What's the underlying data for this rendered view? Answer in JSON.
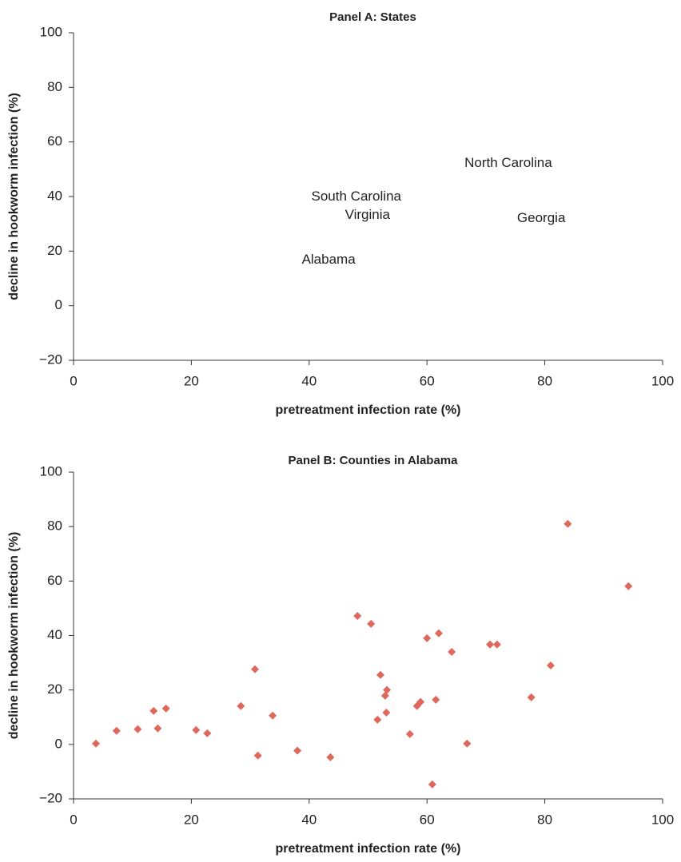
{
  "chart_data": [
    {
      "type": "scatter",
      "title": "Panel A: States",
      "x_label": "pretreatment infection rate (%)",
      "y_label": "decline in hookworm infection (%)",
      "point_labels": [
        "North Carolina",
        "South Carolina",
        "Virginia",
        "Georgia",
        "Alabama"
      ],
      "x": [
        73.8,
        48.0,
        49.9,
        79.4,
        43.3
      ],
      "values": [
        52.1,
        39.8,
        33.1,
        31.9,
        16.7
      ],
      "xlim": [
        0,
        100
      ],
      "ylim": [
        -20,
        100
      ],
      "xticks": [
        0,
        20,
        40,
        60,
        80,
        100
      ],
      "yticks": [
        {
          "value": -20,
          "label": "−20"
        },
        0,
        20,
        40,
        60,
        80,
        100
      ]
    },
    {
      "type": "scatter",
      "title": "Panel B: Counties in Alabama",
      "x_label": "pretreatment infection rate (%)",
      "y_label": "decline in hookworm infection (%)",
      "color": "#e0675c",
      "x": [
        3.8,
        7.3,
        10.9,
        13.6,
        14.3,
        15.7,
        20.8,
        22.7,
        28.4,
        30.8,
        31.3,
        33.8,
        38.0,
        43.6,
        48.2,
        50.5,
        51.6,
        52.1,
        52.9,
        53.2,
        53.1,
        57.1,
        58.3,
        58.9,
        60.0,
        60.9,
        61.5,
        62.0,
        64.2,
        66.8,
        70.7,
        71.9,
        77.7,
        81.0,
        83.9,
        94.2
      ],
      "values": [
        0.3,
        5.0,
        5.6,
        12.3,
        5.9,
        13.2,
        5.3,
        4.1,
        14.1,
        27.6,
        -4.1,
        10.6,
        -2.3,
        -4.7,
        47.2,
        44.3,
        9.1,
        25.5,
        17.9,
        20.0,
        11.7,
        3.8,
        14.1,
        15.6,
        39.0,
        -14.7,
        16.4,
        40.8,
        34.0,
        0.3,
        36.7,
        36.7,
        17.3,
        29.0,
        81.0,
        58.1
      ],
      "xlim": [
        0,
        100
      ],
      "ylim": [
        -20,
        100
      ],
      "xticks": [
        0,
        20,
        40,
        60,
        80,
        100
      ],
      "yticks": [
        {
          "value": -20,
          "label": "−20"
        },
        0,
        20,
        40,
        60,
        80,
        100
      ]
    }
  ]
}
